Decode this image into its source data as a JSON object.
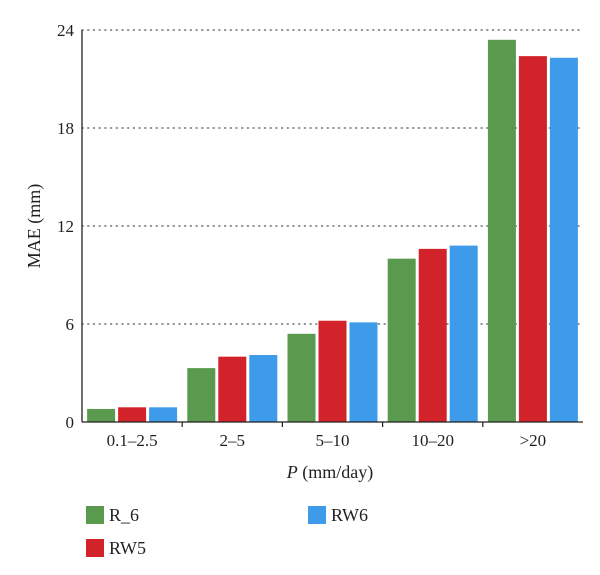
{
  "chart_data": {
    "type": "bar",
    "title": "",
    "xlabel_italic": "P",
    "xlabel_rest": " (mm/day)",
    "ylabel": "MAE (mm)",
    "categories": [
      "0.1–2.5",
      "2–5",
      "5–10",
      "10–20",
      ">20"
    ],
    "ylim": [
      0,
      24
    ],
    "yticks": [
      "0",
      "6",
      "12",
      "18",
      "24"
    ],
    "grid": "dotted horizontal",
    "legend_position": "bottom",
    "series": [
      {
        "name": "R_6",
        "color": "#5a9a4e",
        "values": [
          0.8,
          3.3,
          5.4,
          10.0,
          23.4
        ]
      },
      {
        "name": "RW5",
        "color": "#d2232a",
        "values": [
          0.9,
          4.0,
          6.2,
          10.6,
          22.4
        ]
      },
      {
        "name": "RW6",
        "color": "#3d9be9",
        "values": [
          0.9,
          4.1,
          6.1,
          10.8,
          22.3
        ]
      }
    ]
  }
}
